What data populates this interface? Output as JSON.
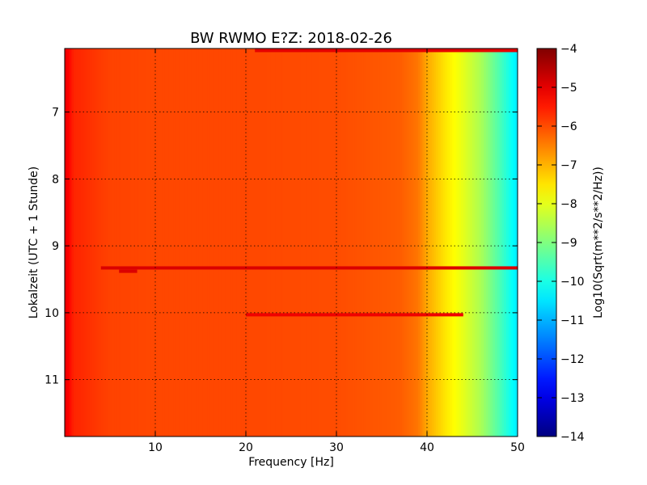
{
  "chart_data": {
    "type": "heatmap",
    "title": "BW RWMO E?Z: 2018-02-26",
    "xlabel": "Frequency [Hz]",
    "ylabel": "Lokalzeit (UTC + 1 Stunde)",
    "xlim": [
      0,
      50
    ],
    "ylim": [
      11.85,
      6.05
    ],
    "y_inverted": true,
    "x_ticks": [
      10,
      20,
      30,
      40,
      50
    ],
    "y_ticks": [
      7,
      8,
      9,
      10,
      11
    ],
    "grid": true,
    "colormap": "jet",
    "colorbar": {
      "label": "Log10(Sqrt(m**2/s**2/Hz))",
      "range": [
        -14,
        -4
      ],
      "ticks": [
        -4,
        -5,
        -6,
        -7,
        -8,
        -9,
        -10,
        -11,
        -12,
        -13,
        -14
      ]
    },
    "background_level_by_frequency": {
      "frequency_hz": [
        0,
        1,
        5,
        10,
        20,
        30,
        37,
        39,
        40,
        42,
        44,
        46,
        48,
        50
      ],
      "log10_amplitude": [
        -5.0,
        -5.6,
        -5.9,
        -5.95,
        -5.95,
        -6.0,
        -6.15,
        -6.4,
        -6.9,
        -7.5,
        -8.0,
        -8.6,
        -9.5,
        -10.5
      ]
    },
    "horizontal_features": [
      {
        "time": 6.08,
        "freq_range": [
          21,
          50
        ],
        "log10_amplitude": -5.0
      },
      {
        "time": 9.33,
        "freq_range": [
          4,
          50
        ],
        "log10_amplitude": -4.9
      },
      {
        "time": 9.38,
        "freq_range": [
          6,
          8
        ],
        "log10_amplitude": -4.9
      },
      {
        "time": 10.03,
        "freq_range": [
          20,
          44
        ],
        "log10_amplitude": -5.1
      }
    ]
  },
  "colors": {
    "jet": [
      "#00007f",
      "#0000ff",
      "#007fff",
      "#00ffff",
      "#7fff7f",
      "#ffff00",
      "#ff7f00",
      "#ff0000",
      "#7f0000"
    ]
  }
}
